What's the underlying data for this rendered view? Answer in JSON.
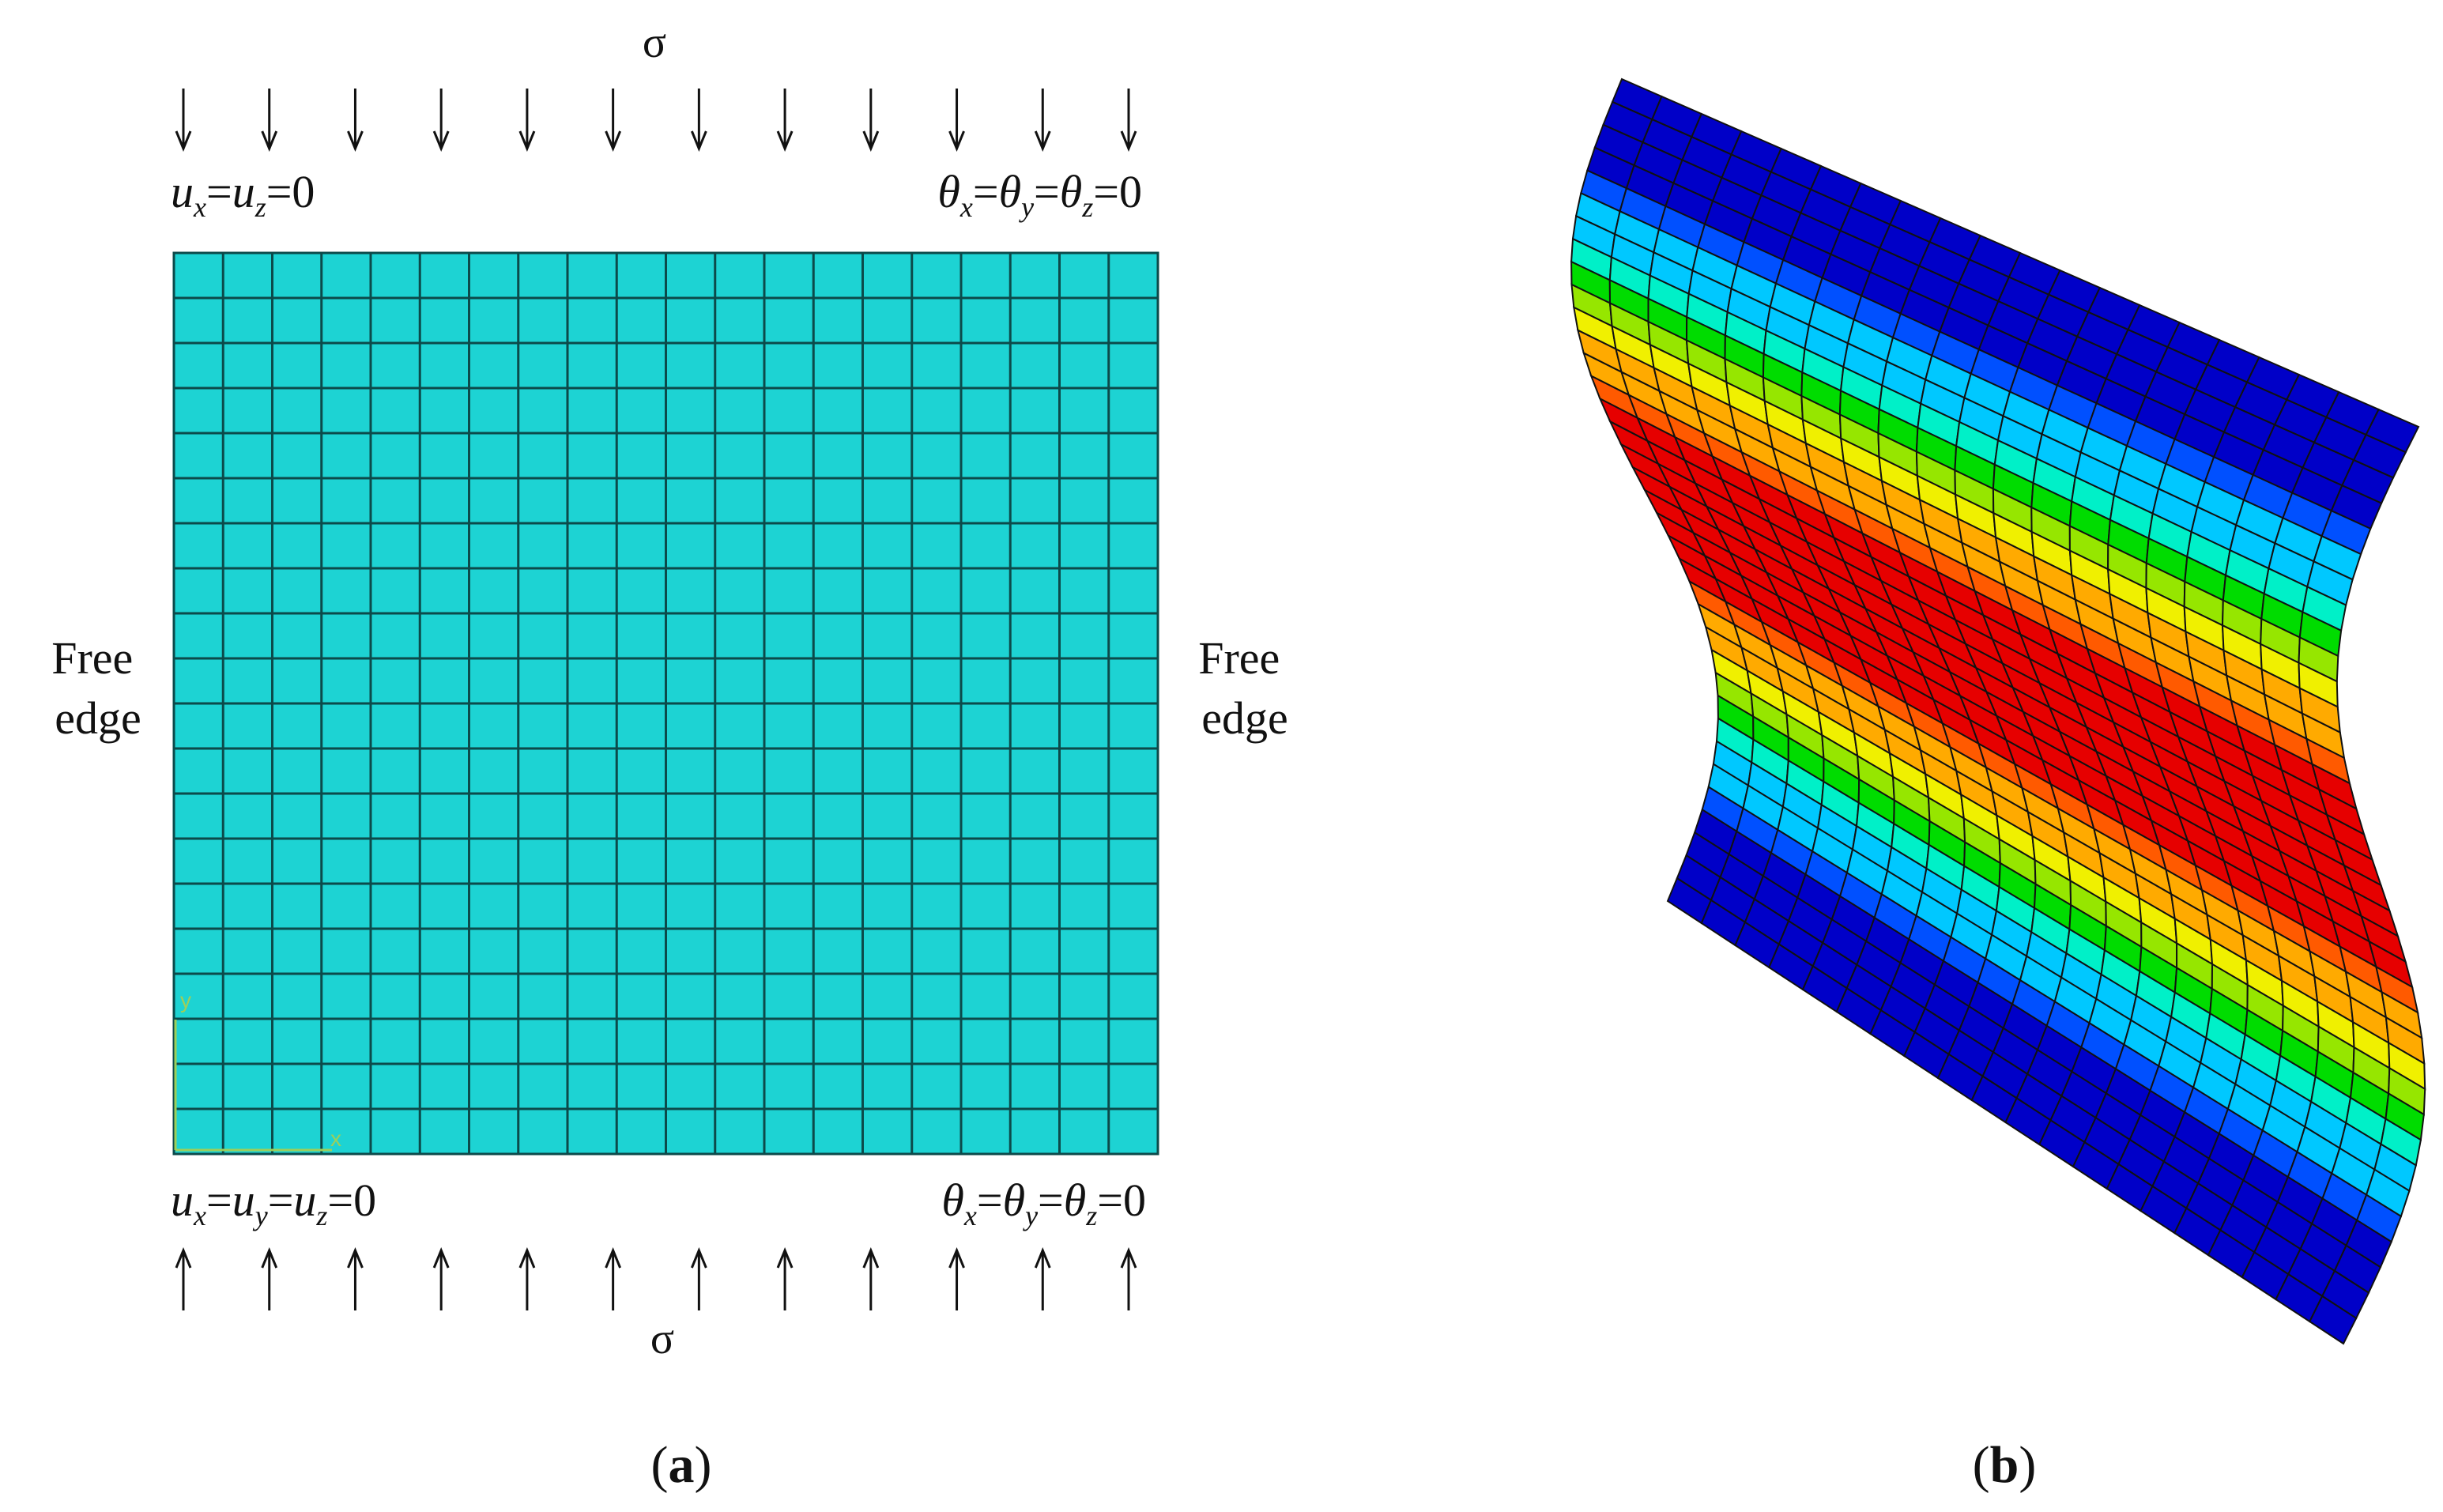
{
  "panel_a": {
    "label_open": "(",
    "label_letter": "a",
    "label_close": ")",
    "stress_top": "σ",
    "stress_bottom": "σ",
    "top_left_bc": {
      "parts": [
        "u",
        "x",
        "=",
        "u",
        "z",
        "=0"
      ]
    },
    "top_right_bc": {
      "parts": [
        "θ",
        "x",
        "=",
        "θ",
        "y",
        "=",
        "θ",
        "z",
        "=0"
      ]
    },
    "bottom_left_bc": {
      "parts": [
        "u",
        "x",
        "=",
        "u",
        "y",
        "=",
        "u",
        "z",
        "=0"
      ]
    },
    "bottom_right_bc": {
      "parts": [
        "θ",
        "x",
        "=",
        "θ",
        "y",
        "=",
        "θ",
        "z",
        "=0"
      ]
    },
    "left_edge": [
      "Free",
      "edge"
    ],
    "right_edge": [
      "Free",
      "edge"
    ],
    "mesh": {
      "cols": 20,
      "rows": 20,
      "fill": "#1dd3d3",
      "line": "#0c4a4a"
    },
    "axis_labels": {
      "x": "x",
      "y": "y"
    },
    "arrow_count_top": 12,
    "arrow_count_bottom": 12
  },
  "panel_b": {
    "label_open": "(",
    "label_letter": "b",
    "label_close": ")",
    "mesh": {
      "cols": 20,
      "rows": 36
    },
    "colormap": [
      "#0000c8",
      "#0050ff",
      "#00c8ff",
      "#00f0c8",
      "#00dc00",
      "#96e600",
      "#f0f000",
      "#ffaa00",
      "#ff5a00",
      "#e60000"
    ]
  }
}
